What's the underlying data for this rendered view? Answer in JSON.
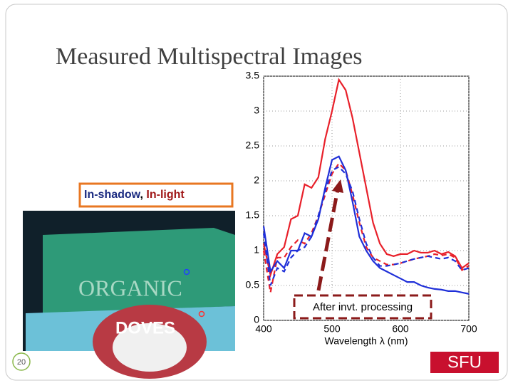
{
  "slide": {
    "title": "Measured Multispectral Images",
    "label_box": {
      "first": "In-shadow",
      "separator": ",",
      "second": "In-light"
    },
    "photo_texts": [
      "ORGANIC",
      "DOVES"
    ],
    "callout": "After invt. processing",
    "page_number": "20",
    "logo": "SFU"
  },
  "chart_data": {
    "type": "line",
    "xlabel": "Wavelength λ (nm)",
    "x": [
      400,
      410,
      420,
      430,
      440,
      450,
      460,
      470,
      480,
      490,
      500,
      510,
      520,
      530,
      540,
      550,
      560,
      570,
      580,
      590,
      600,
      610,
      620,
      630,
      640,
      650,
      660,
      670,
      680,
      690,
      700
    ],
    "series": [
      {
        "color": "#e8202a",
        "style": "solid",
        "values": [
          1.1,
          0.65,
          0.95,
          1.05,
          1.45,
          1.5,
          1.95,
          1.9,
          2.05,
          2.6,
          3.0,
          3.45,
          3.3,
          2.9,
          2.4,
          1.9,
          1.4,
          1.1,
          0.95,
          0.92,
          0.95,
          0.95,
          1.0,
          0.97,
          0.97,
          1.0,
          0.95,
          0.98,
          0.92,
          0.75,
          0.82
        ]
      },
      {
        "color": "#e8202a",
        "style": "dashed",
        "values": [
          1.0,
          0.4,
          0.9,
          0.9,
          1.05,
          1.15,
          1.1,
          1.25,
          1.5,
          1.8,
          2.1,
          2.25,
          2.15,
          1.8,
          1.4,
          1.05,
          0.9,
          0.85,
          0.8,
          0.8,
          0.82,
          0.85,
          0.88,
          0.9,
          0.92,
          0.95,
          0.93,
          0.95,
          0.9,
          0.72,
          0.78
        ]
      },
      {
        "color": "#1f2fd8",
        "style": "solid",
        "values": [
          1.35,
          0.7,
          0.85,
          0.75,
          1.0,
          1.0,
          1.25,
          1.2,
          1.45,
          1.9,
          2.3,
          2.35,
          2.15,
          1.7,
          1.2,
          1.0,
          0.85,
          0.75,
          0.7,
          0.65,
          0.6,
          0.55,
          0.55,
          0.5,
          0.47,
          0.45,
          0.44,
          0.42,
          0.42,
          0.4,
          0.38
        ]
      },
      {
        "color": "#1f2fd8",
        "style": "dashed",
        "values": [
          1.25,
          0.5,
          0.75,
          0.7,
          0.9,
          1.0,
          1.05,
          1.2,
          1.5,
          1.85,
          2.15,
          2.2,
          2.1,
          1.85,
          1.45,
          1.1,
          0.9,
          0.78,
          0.78,
          0.8,
          0.82,
          0.85,
          0.88,
          0.9,
          0.92,
          0.9,
          0.88,
          0.9,
          0.85,
          0.72,
          0.75
        ]
      }
    ],
    "xlim": [
      400,
      700
    ],
    "xticks": [
      400,
      500,
      600,
      700
    ],
    "ylim": [
      0,
      3.5
    ],
    "yticks": [
      0,
      0.5,
      1,
      1.5,
      2,
      2.5,
      3,
      3.5
    ],
    "grid": true
  }
}
